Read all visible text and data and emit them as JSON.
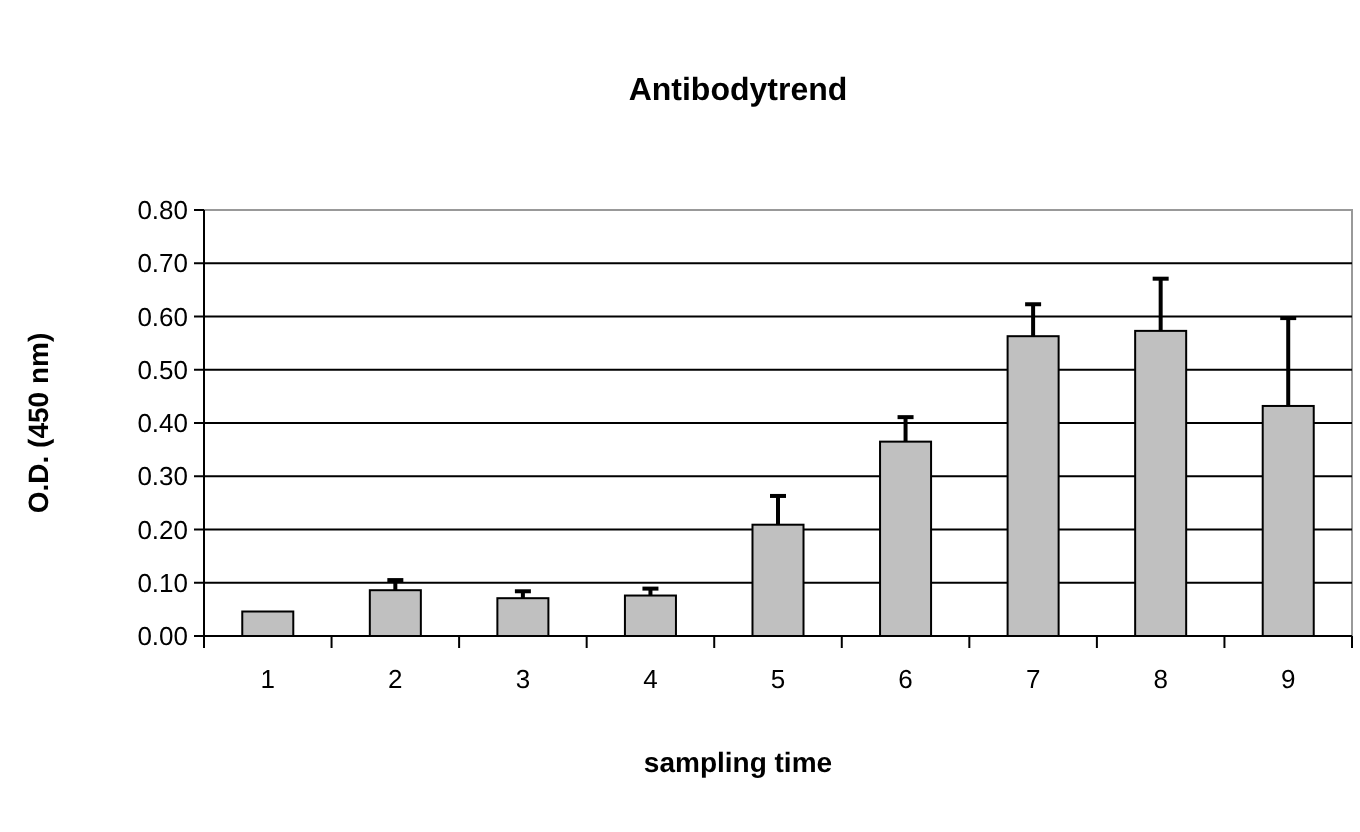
{
  "chart_data": {
    "type": "bar",
    "title": "Antibodytrend",
    "xlabel": "sampling time",
    "ylabel": "O.D. (450 nm)",
    "categories": [
      "1",
      "2",
      "3",
      "4",
      "5",
      "6",
      "7",
      "8",
      "9"
    ],
    "values": [
      0.046,
      0.086,
      0.071,
      0.076,
      0.209,
      0.365,
      0.563,
      0.573,
      0.432
    ],
    "errors": [
      null,
      [
        0.086,
        0.105
      ],
      [
        0.071,
        0.084
      ],
      [
        0.076,
        0.089
      ],
      [
        0.209,
        0.263
      ],
      [
        0.365,
        0.411
      ],
      [
        0.563,
        0.623
      ],
      [
        0.573,
        0.671
      ],
      [
        0.432,
        0.597
      ]
    ],
    "color": "#c0c0c0",
    "ylim": [
      0,
      0.8
    ],
    "yticks": [
      {
        "value": 0,
        "label": "0.00"
      },
      {
        "value": 0.1,
        "label": "0.10"
      },
      {
        "value": 0.2,
        "label": "0.20"
      },
      {
        "value": 0.3,
        "label": "0.30"
      },
      {
        "value": 0.4,
        "label": "0.40"
      },
      {
        "value": 0.5,
        "label": "0.50"
      },
      {
        "value": 0.6,
        "label": "0.60"
      },
      {
        "value": 0.7,
        "label": "0.70"
      },
      {
        "value": 0.8,
        "label": "0.80"
      }
    ],
    "grid": "y"
  }
}
